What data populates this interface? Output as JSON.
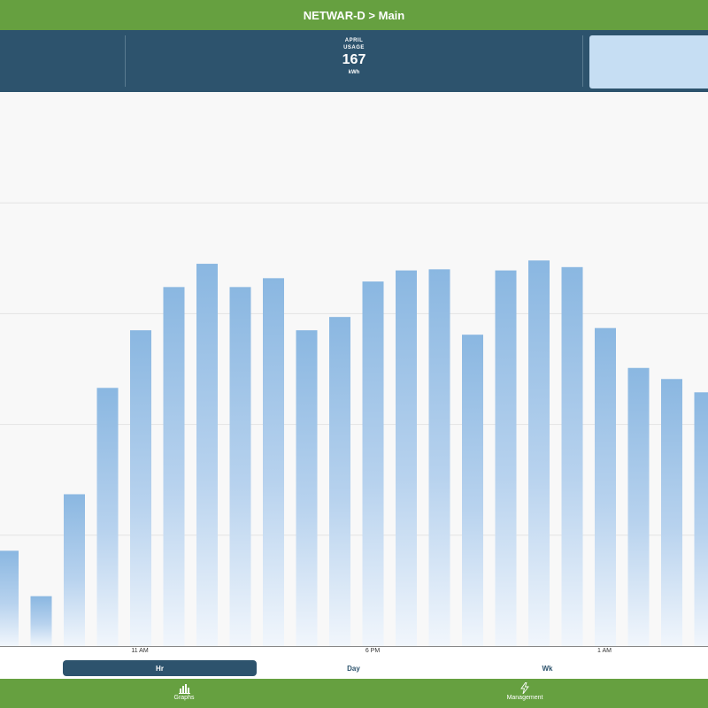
{
  "title": "NETWAR-D > Main",
  "summary": {
    "period_label": "APRIL",
    "metric_label": "USAGE",
    "value": "167",
    "unit": "kWh"
  },
  "chart_data": {
    "type": "bar",
    "title": "",
    "xlabel": "",
    "ylabel": "",
    "x_tick_labels": [
      "11 AM",
      "6 PM",
      "1 AM"
    ],
    "values": [
      0.86,
      0.45,
      1.37,
      2.33,
      2.85,
      3.24,
      3.45,
      3.24,
      3.32,
      2.85,
      2.97,
      3.29,
      3.39,
      3.4,
      2.81,
      3.39,
      3.48,
      3.42,
      2.87,
      2.51,
      2.41,
      2.29
    ],
    "ylim": [
      0,
      5
    ],
    "grid": true,
    "bar_color": "#8ab7e1"
  },
  "range_tabs": [
    {
      "label": "Hr",
      "active": true
    },
    {
      "label": "Day",
      "active": false
    },
    {
      "label": "Wk",
      "active": false
    }
  ],
  "nav": [
    {
      "label": "Graphs",
      "icon": "bar-chart-icon"
    },
    {
      "label": "Management",
      "icon": "lightning-icon"
    }
  ],
  "colors": {
    "green": "#66a040",
    "navy": "#2d536d",
    "panel": "#c6def3"
  }
}
